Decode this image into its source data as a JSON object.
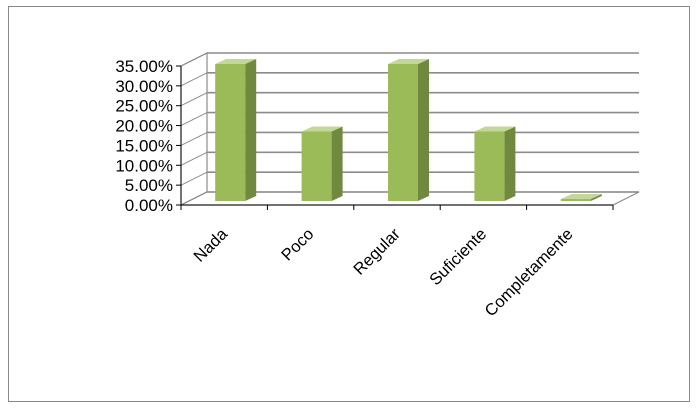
{
  "chart_data": {
    "type": "bar",
    "style": "3d-column",
    "categories": [
      "Nada",
      "Poco",
      "Regular",
      "Suficiente",
      "Completamente"
    ],
    "values": [
      0.35,
      0.18,
      0.35,
      0.18,
      0.01
    ],
    "y_ticks": [
      "0.00%",
      "5.00%",
      "10.00%",
      "15.00%",
      "20.00%",
      "25.00%",
      "30.00%",
      "35.00%"
    ],
    "ylim": [
      0,
      0.35
    ],
    "grid": true,
    "legend": "none",
    "colors": {
      "bar_front": "#9bbb59",
      "bar_side": "#71893f",
      "bar_top": "#c3d69b",
      "grid": "#8c8c8c",
      "wall": "#ffffff"
    }
  }
}
